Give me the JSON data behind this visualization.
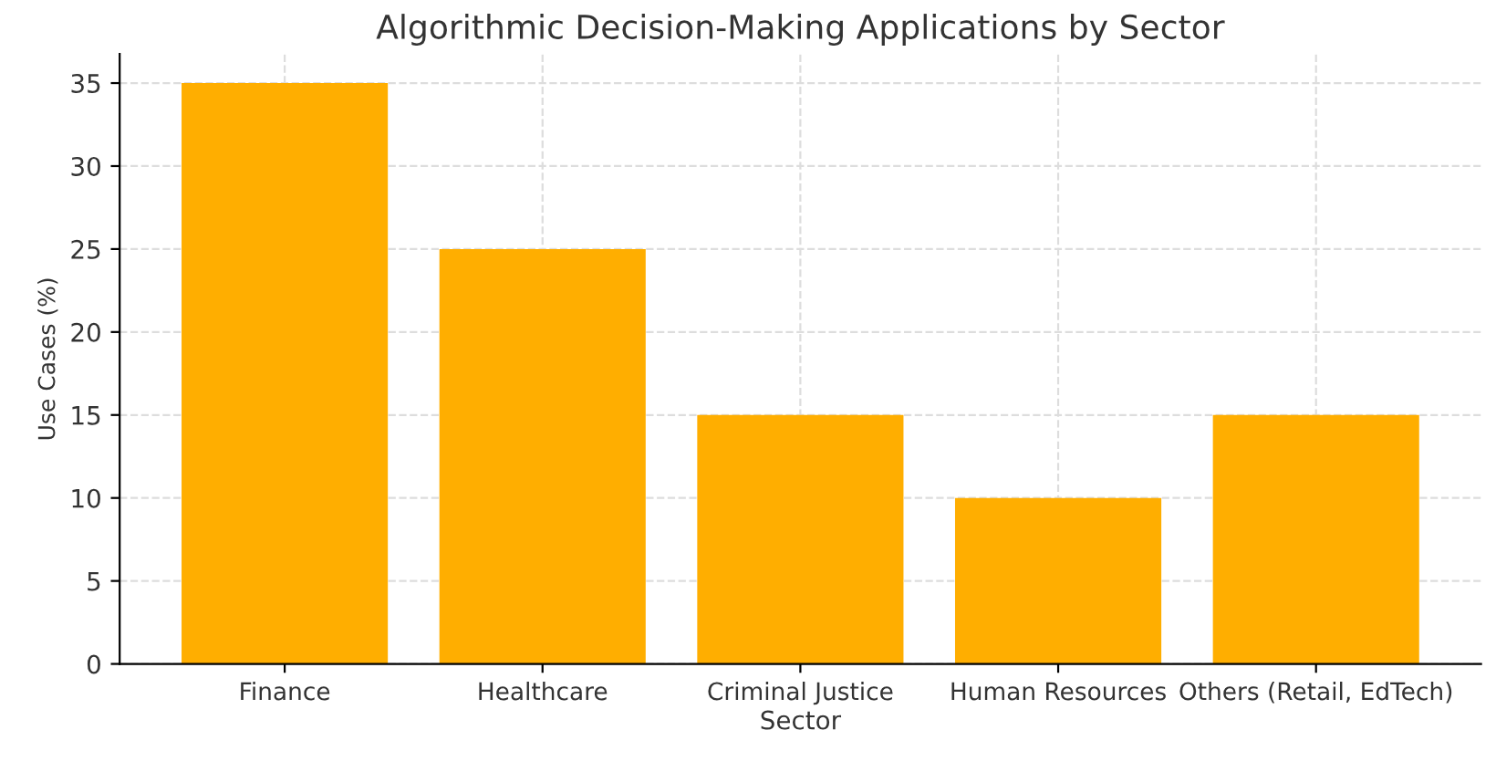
{
  "chart_data": {
    "type": "bar",
    "title": "Algorithmic Decision-Making Applications by Sector",
    "xlabel": "Sector",
    "ylabel": "Use Cases (%)",
    "categories": [
      "Finance",
      "Healthcare",
      "Criminal Justice",
      "Human Resources",
      "Others (Retail, EdTech)"
    ],
    "values": [
      35,
      25,
      15,
      10,
      15
    ],
    "color": "#ffae00",
    "ylim": [
      0,
      36.75
    ],
    "yticks": [
      0,
      5,
      10,
      15,
      20,
      25,
      30,
      35
    ],
    "grid": true,
    "line_style": "dashed"
  }
}
